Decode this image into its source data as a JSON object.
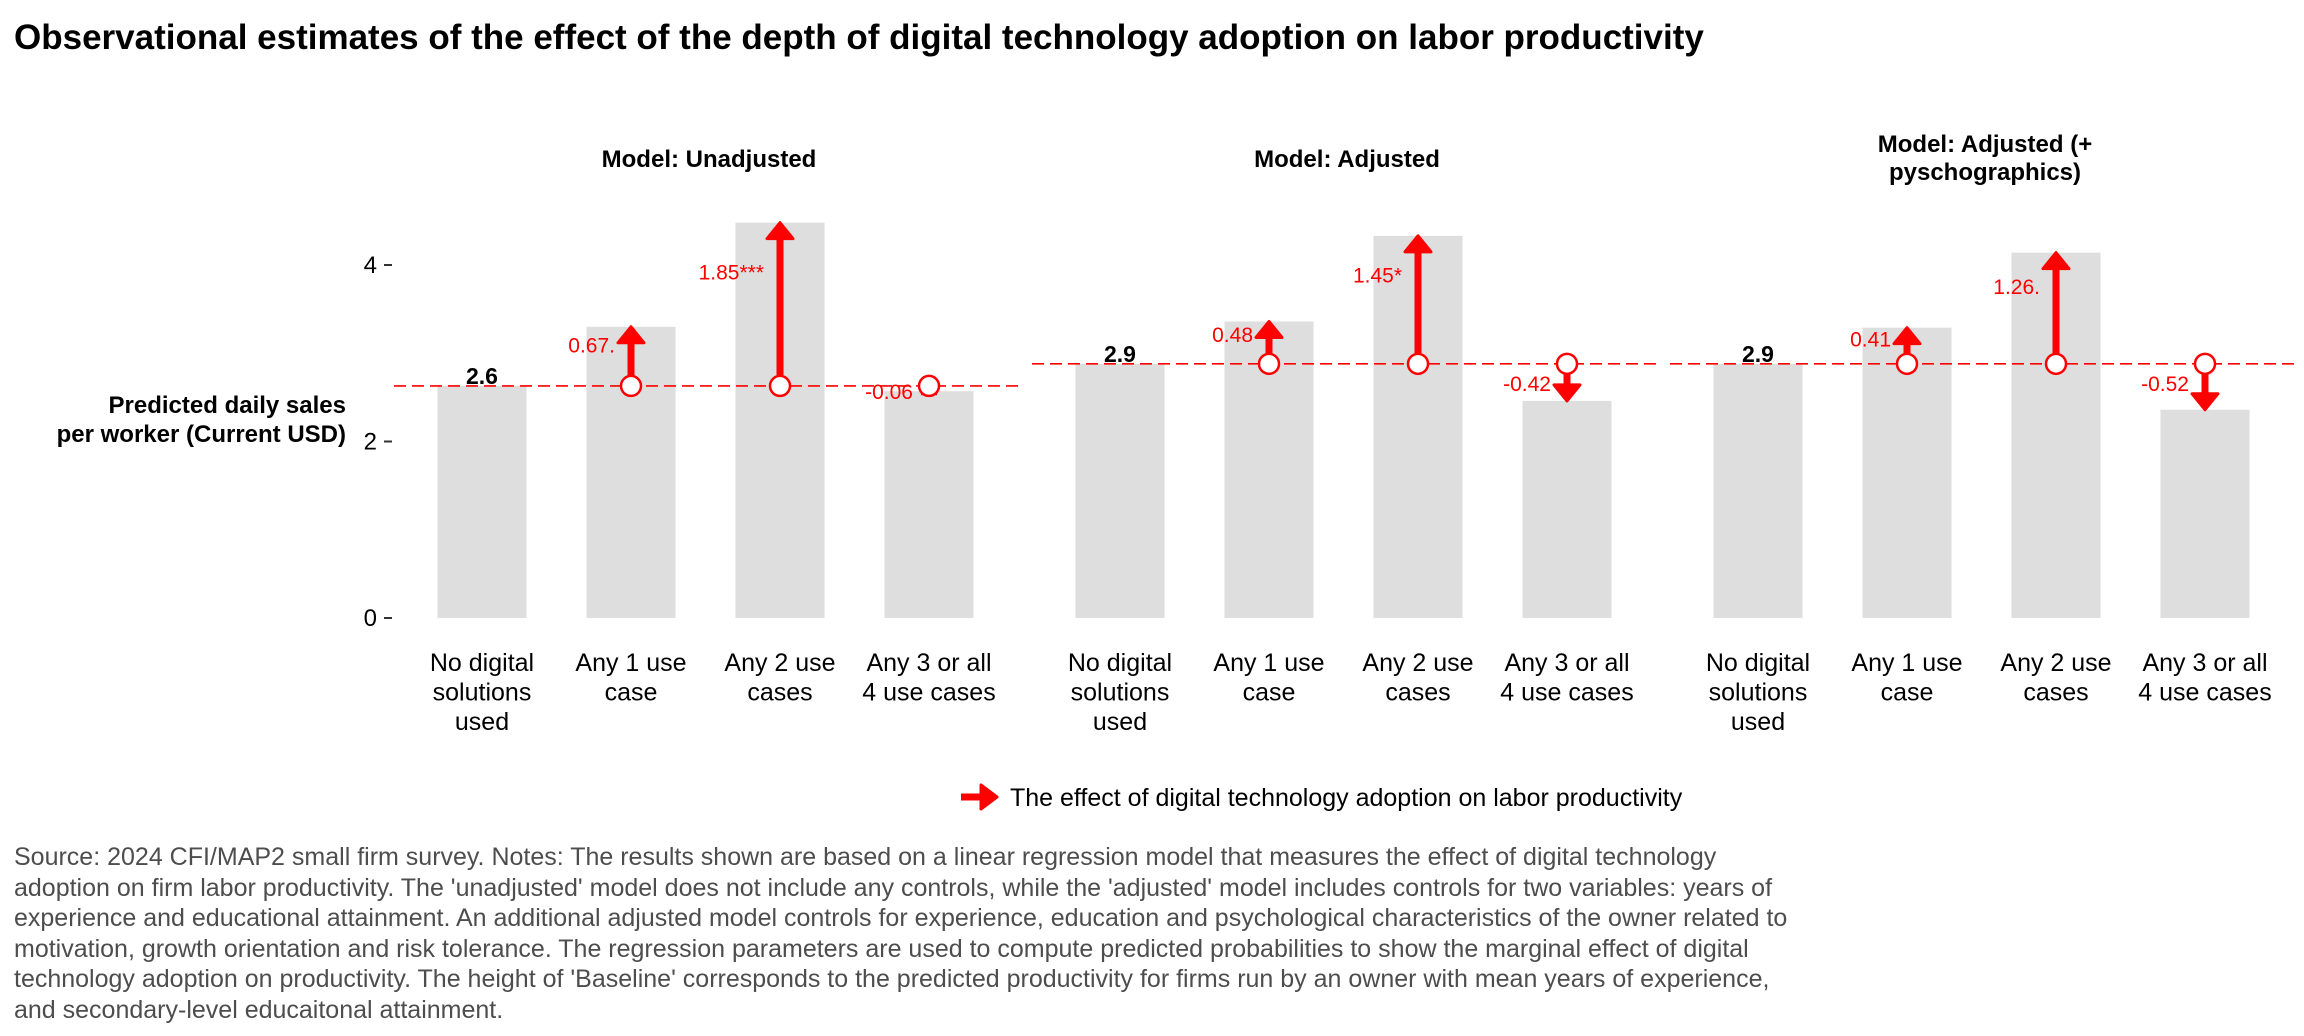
{
  "chart_data": {
    "type": "bar",
    "title": "Observational estimates of the effect of the depth of digital technology adoption on labor productivity",
    "ylabel": "Predicted daily sales\nper worker (Current USD)",
    "ylim": [
      0,
      4.6
    ],
    "yticks": [
      0,
      2,
      4
    ],
    "categories": [
      "No digital\nsolutions\nused",
      "Any 1 use\ncase",
      "Any 2 use\ncases",
      "Any 3 or all\n4 use cases"
    ],
    "panels": [
      {
        "name": "Model: Unadjusted",
        "baseline": 2.63,
        "baseline_label": "2.6",
        "values": [
          2.63,
          3.3,
          4.48,
          2.57
        ],
        "effects": [
          null,
          0.67,
          1.85,
          -0.06
        ],
        "effect_labels": [
          "",
          "0.67.",
          "1.85***",
          "-0.06"
        ]
      },
      {
        "name": "Model: Adjusted",
        "baseline": 2.88,
        "baseline_label": "2.9",
        "values": [
          2.88,
          3.36,
          4.33,
          2.46
        ],
        "effects": [
          null,
          0.48,
          1.45,
          -0.42
        ],
        "effect_labels": [
          "",
          "0.48",
          "1.45*",
          "-0.42"
        ]
      },
      {
        "name": "Model: Adjusted (+\npyschographics)",
        "baseline": 2.88,
        "baseline_label": "2.9",
        "values": [
          2.88,
          3.29,
          4.14,
          2.36
        ],
        "effects": [
          null,
          0.41,
          1.26,
          -0.52
        ],
        "effect_labels": [
          "",
          "0.41",
          "1.26.",
          "-0.52"
        ]
      }
    ],
    "legend": {
      "label": "The effect of digital technology adoption on labor productivity",
      "position": "bottom"
    },
    "colors": {
      "bar": "#dedede",
      "effect": "#ff0000",
      "text": "#000000",
      "note": "#4d4d4d"
    },
    "grid": false
  },
  "source_note": "Source: 2024 CFI/MAP2 small firm survey. Notes: The results shown are based on a linear regression model that measures the effect of digital technology adoption on firm labor productivity. The 'unadjusted' model does not include any controls, while the 'adjusted' model includes controls for two variables: years of experience and educational attainment. An additional adjusted model controls for experience, education and psychological characteristics of the owner related to motivation, growth orientation and risk tolerance. The regression parameters are used to compute predicted probabilities to show the marginal effect of digital technology adoption on productivity. The height of 'Baseline' corresponds to the predicted productivity for firms run by an owner with mean years of experience, and secondary-level educaitonal attainment."
}
